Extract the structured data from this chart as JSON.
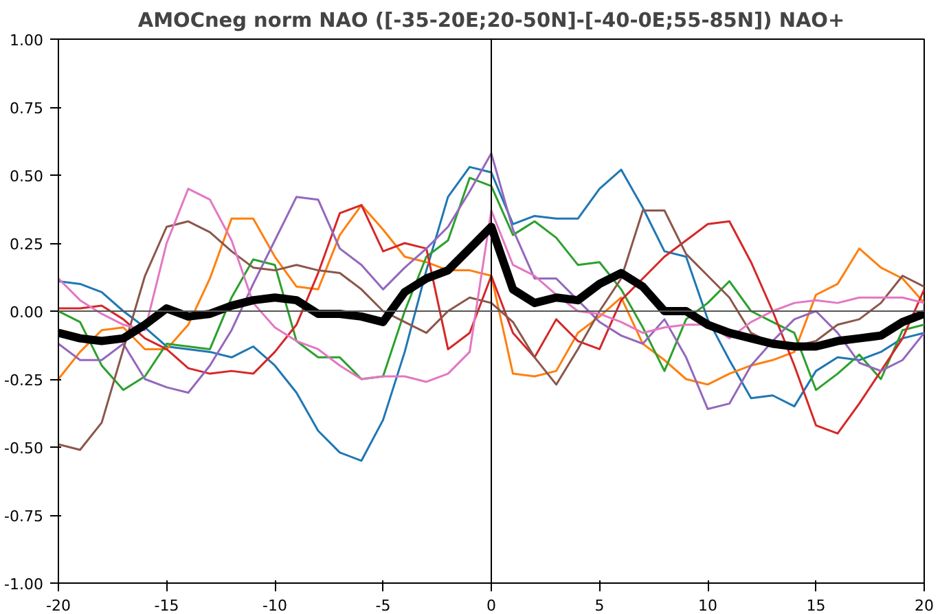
{
  "chart_data": {
    "type": "line",
    "title": "AMOCneg norm NAO ([-35-20E;20-50N]-[-40-0E;55-85N]) NAO+",
    "x": [
      -20,
      -19,
      -18,
      -17,
      -16,
      -15,
      -14,
      -13,
      -12,
      -11,
      -10,
      -9,
      -8,
      -7,
      -6,
      -5,
      -4,
      -3,
      -2,
      -1,
      0,
      1,
      2,
      3,
      4,
      5,
      6,
      7,
      8,
      9,
      10,
      11,
      12,
      13,
      14,
      15,
      16,
      17,
      18,
      19,
      20
    ],
    "xlim": [
      -20,
      20
    ],
    "xticks": [
      -20,
      -15,
      -10,
      -5,
      0,
      5,
      10,
      15,
      20
    ],
    "ylim": [
      -1,
      1
    ],
    "yticks": [
      {
        "value": -1,
        "label": "-1.00"
      },
      {
        "value": -0.75,
        "label": "-0.75"
      },
      {
        "value": -0.5,
        "label": "-0.50"
      },
      {
        "value": -0.25,
        "label": "-0.25"
      },
      {
        "value": 0,
        "label": "0.00"
      },
      {
        "value": 0.25,
        "label": "0.25"
      },
      {
        "value": 0.5,
        "label": "0.50"
      },
      {
        "value": 0.75,
        "label": "0.75"
      },
      {
        "value": 1,
        "label": "1.00"
      }
    ],
    "grid": false,
    "ref_lines": [
      {
        "axis": "x",
        "value": 0,
        "color": "#000000"
      },
      {
        "axis": "y",
        "value": 0,
        "color": "#555555"
      }
    ],
    "series": [
      {
        "color": "#1f77b4",
        "values": [
          0.11,
          0.1,
          0.07,
          0.0,
          -0.06,
          -0.13,
          -0.14,
          -0.15,
          -0.17,
          -0.13,
          -0.2,
          -0.3,
          -0.44,
          -0.52,
          -0.55,
          -0.4,
          -0.15,
          0.15,
          0.42,
          0.53,
          0.51,
          0.32,
          0.35,
          0.34,
          0.34,
          0.45,
          0.52,
          0.38,
          0.22,
          0.2,
          -0.03,
          -0.18,
          -0.32,
          -0.31,
          -0.35,
          -0.22,
          -0.17,
          -0.18,
          -0.15,
          -0.1,
          -0.08
        ]
      },
      {
        "color": "#ff7f0e",
        "values": [
          -0.25,
          -0.15,
          -0.07,
          -0.06,
          -0.14,
          -0.14,
          -0.05,
          0.12,
          0.34,
          0.34,
          0.2,
          0.09,
          0.08,
          0.28,
          0.39,
          0.3,
          0.2,
          0.18,
          0.15,
          0.15,
          0.13,
          -0.23,
          -0.24,
          -0.22,
          -0.08,
          -0.02,
          0.05,
          -0.12,
          -0.18,
          -0.25,
          -0.27,
          -0.23,
          -0.2,
          -0.18,
          -0.15,
          0.06,
          0.1,
          0.23,
          0.16,
          0.12,
          0.03
        ]
      },
      {
        "color": "#2ca02c",
        "values": [
          0.0,
          -0.04,
          -0.2,
          -0.29,
          -0.24,
          -0.12,
          -0.13,
          -0.14,
          0.05,
          0.19,
          0.17,
          -0.11,
          -0.17,
          -0.17,
          -0.25,
          -0.24,
          0.0,
          0.2,
          0.26,
          0.49,
          0.46,
          0.28,
          0.33,
          0.27,
          0.17,
          0.18,
          0.08,
          -0.06,
          -0.22,
          -0.03,
          0.03,
          0.11,
          0.0,
          -0.04,
          -0.08,
          -0.29,
          -0.23,
          -0.16,
          -0.25,
          -0.07,
          -0.05
        ]
      },
      {
        "color": "#d62728",
        "values": [
          0.01,
          0.01,
          0.02,
          -0.03,
          -0.1,
          -0.14,
          -0.21,
          -0.23,
          -0.22,
          -0.23,
          -0.15,
          -0.05,
          0.14,
          0.36,
          0.39,
          0.22,
          0.25,
          0.23,
          -0.14,
          -0.08,
          0.13,
          -0.08,
          -0.17,
          -0.03,
          -0.11,
          -0.14,
          0.04,
          0.12,
          0.2,
          0.26,
          0.32,
          0.33,
          0.18,
          0.0,
          -0.2,
          -0.42,
          -0.45,
          -0.34,
          -0.22,
          -0.1,
          0.08
        ]
      },
      {
        "color": "#9467bd",
        "values": [
          -0.12,
          -0.18,
          -0.18,
          -0.12,
          -0.25,
          -0.28,
          -0.3,
          -0.2,
          -0.07,
          0.1,
          0.26,
          0.42,
          0.41,
          0.23,
          0.17,
          0.08,
          0.16,
          0.23,
          0.31,
          0.44,
          0.58,
          0.3,
          0.12,
          0.12,
          0.04,
          -0.04,
          -0.09,
          -0.12,
          -0.03,
          -0.17,
          -0.36,
          -0.34,
          -0.2,
          -0.11,
          -0.03,
          0.0,
          -0.08,
          -0.19,
          -0.22,
          -0.18,
          -0.08
        ]
      },
      {
        "color": "#8c564b",
        "values": [
          -0.49,
          -0.51,
          -0.41,
          -0.14,
          0.13,
          0.31,
          0.33,
          0.29,
          0.22,
          0.16,
          0.15,
          0.17,
          0.15,
          0.14,
          0.08,
          0.0,
          -0.04,
          -0.08,
          0.0,
          0.05,
          0.03,
          -0.04,
          -0.17,
          -0.27,
          -0.14,
          0.0,
          0.12,
          0.37,
          0.37,
          0.21,
          0.13,
          0.05,
          -0.08,
          -0.12,
          -0.13,
          -0.11,
          -0.05,
          -0.03,
          0.03,
          0.13,
          0.09
        ]
      },
      {
        "color": "#e377c2",
        "values": [
          0.12,
          0.04,
          -0.01,
          -0.05,
          -0.07,
          0.25,
          0.45,
          0.41,
          0.26,
          0.03,
          -0.06,
          -0.11,
          -0.14,
          -0.2,
          -0.25,
          -0.24,
          -0.24,
          -0.26,
          -0.23,
          -0.15,
          0.37,
          0.17,
          0.13,
          0.06,
          0.0,
          -0.01,
          -0.04,
          -0.08,
          -0.06,
          -0.05,
          -0.05,
          -0.1,
          -0.04,
          0.0,
          0.03,
          0.04,
          0.03,
          0.05,
          0.05,
          0.05,
          0.03
        ]
      },
      {
        "color": "#000000",
        "values": [
          -0.08,
          -0.1,
          -0.11,
          -0.1,
          -0.05,
          0.01,
          -0.02,
          -0.01,
          0.02,
          0.04,
          0.05,
          0.04,
          -0.01,
          -0.01,
          -0.02,
          -0.04,
          0.07,
          0.12,
          0.15,
          0.23,
          0.31,
          0.08,
          0.03,
          0.05,
          0.04,
          0.1,
          0.14,
          0.09,
          0.0,
          0.0,
          -0.05,
          -0.08,
          -0.1,
          -0.12,
          -0.13,
          -0.13,
          -0.11,
          -0.1,
          -0.09,
          -0.04,
          -0.01
        ]
      }
    ]
  }
}
